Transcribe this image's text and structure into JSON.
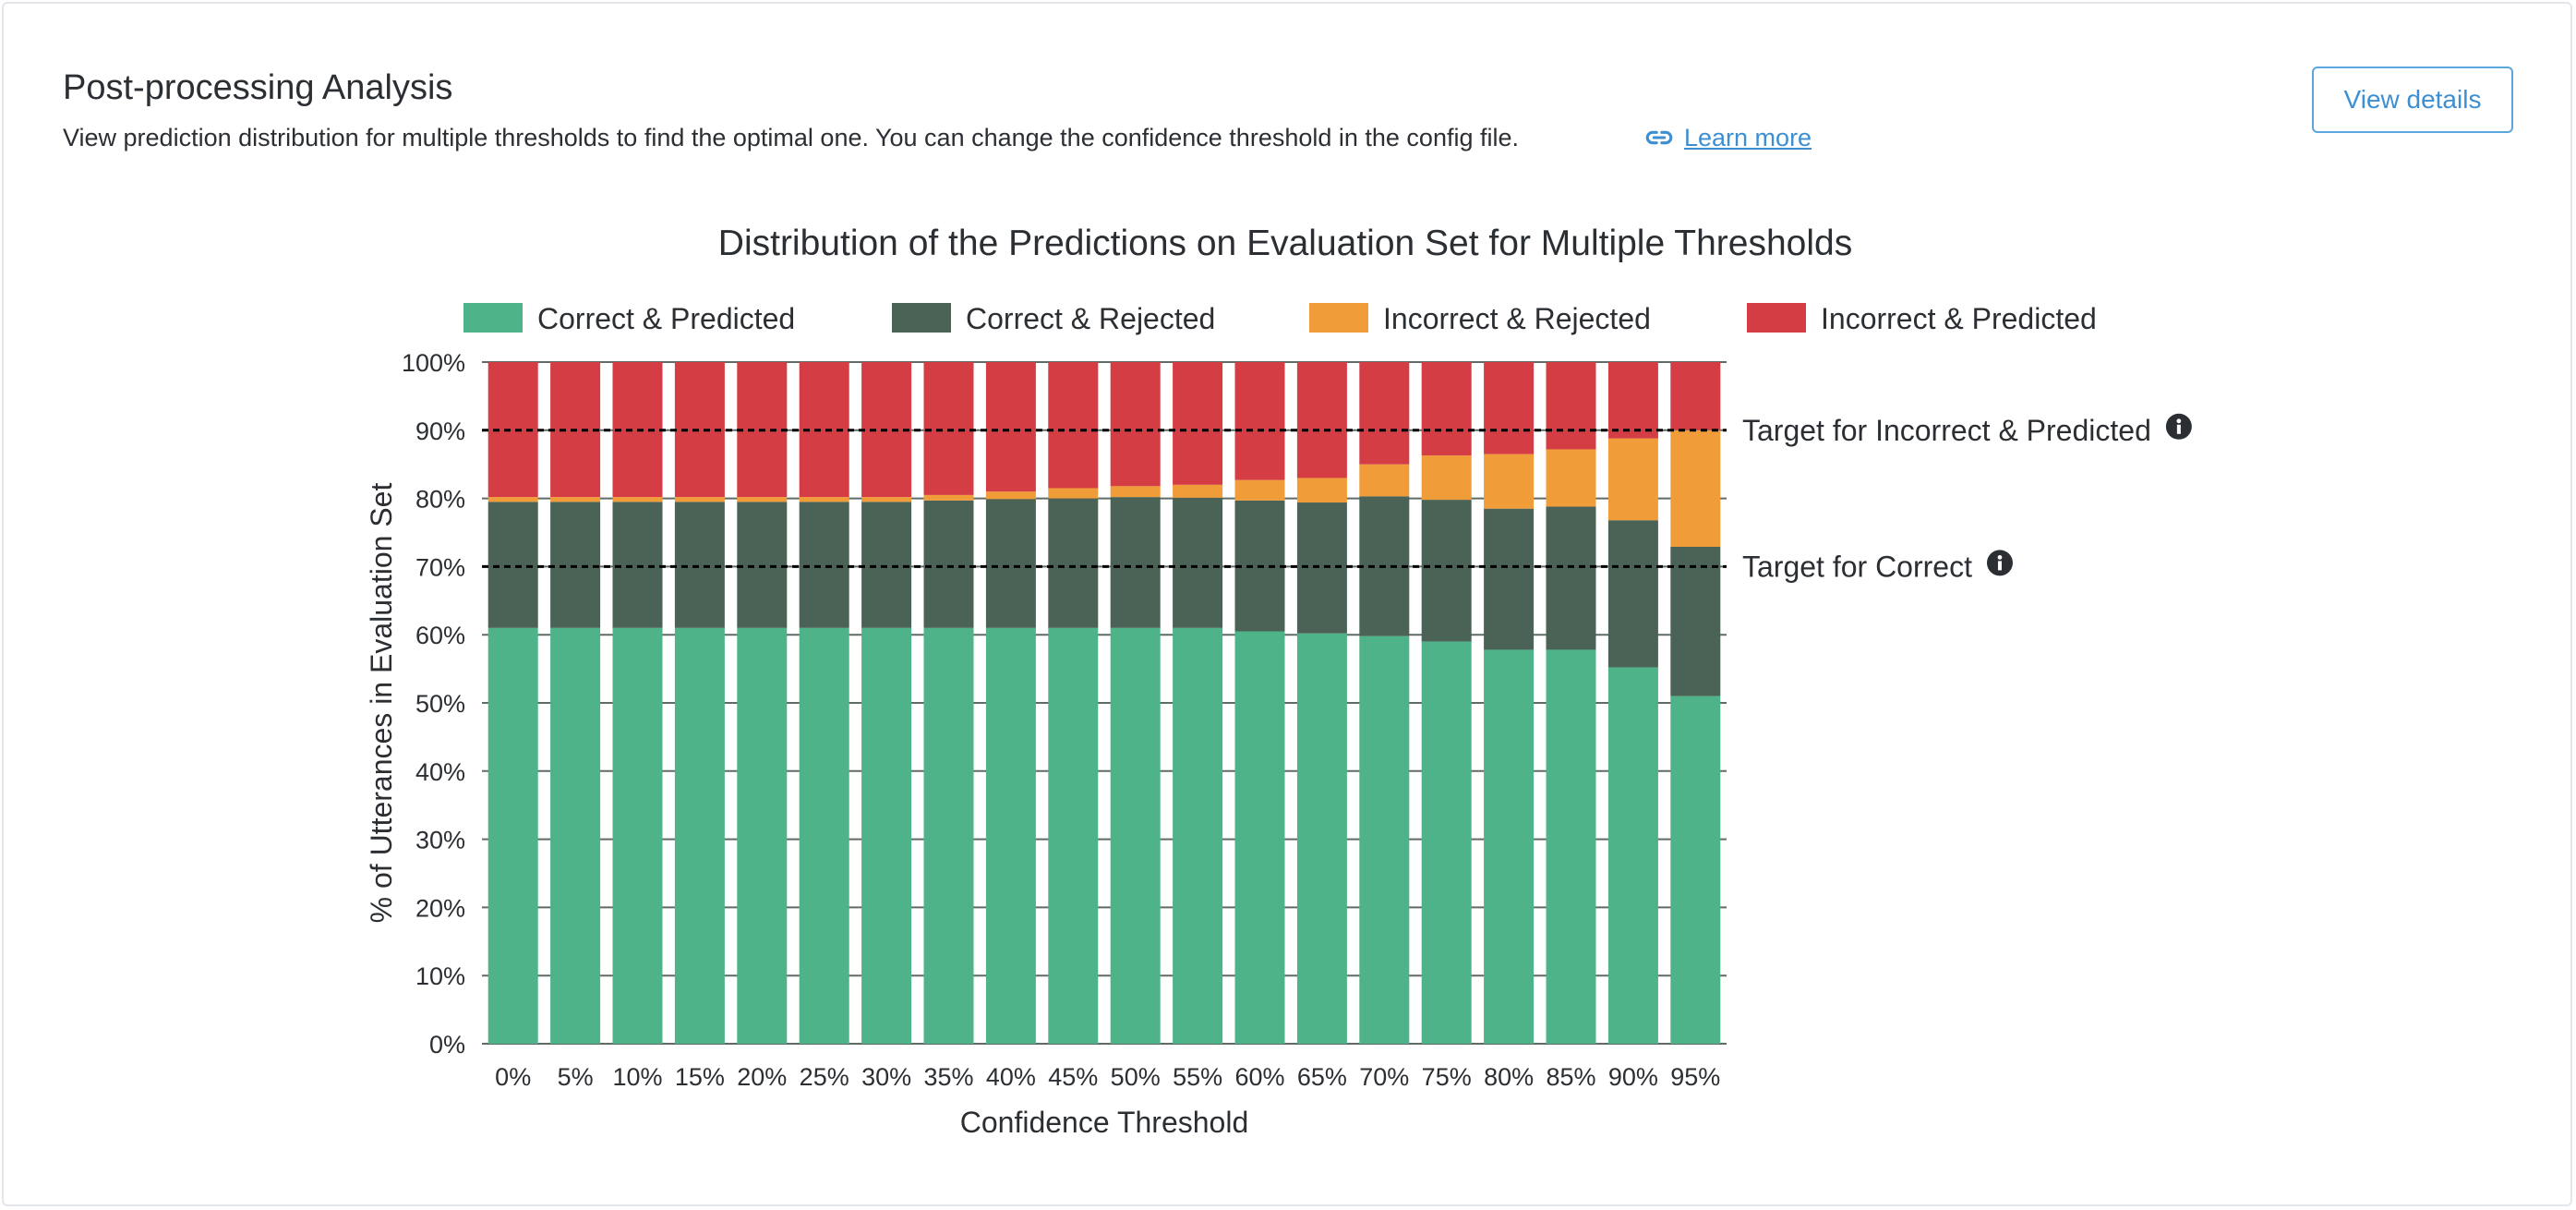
{
  "header": {
    "title": "Post-processing Analysis",
    "description": "View prediction distribution for multiple thresholds to find the optimal one. You can change the confidence threshold in the config file.",
    "learn_more_label": "Learn more",
    "view_details_label": "View details",
    "link_icon": "link-icon"
  },
  "chart_data": {
    "type": "bar",
    "stacked": true,
    "title": "Distribution of the Predictions on Evaluation Set for Multiple Thresholds",
    "xlabel": "Confidence Threshold",
    "ylabel": "% of Utterances in Evaluation Set",
    "ylim": [
      0,
      100
    ],
    "yticks": [
      "0%",
      "10%",
      "20%",
      "30%",
      "40%",
      "50%",
      "60%",
      "70%",
      "80%",
      "90%",
      "100%"
    ],
    "grid": true,
    "legend_position": "top",
    "categories": [
      "0%",
      "5%",
      "10%",
      "15%",
      "20%",
      "25%",
      "30%",
      "35%",
      "40%",
      "45%",
      "50%",
      "55%",
      "60%",
      "65%",
      "70%",
      "75%",
      "80%",
      "85%",
      "90%",
      "95%"
    ],
    "series": [
      {
        "name": "Correct & Predicted",
        "color": "#4fb38a",
        "values": [
          61,
          61,
          61,
          61,
          61,
          61,
          61,
          61,
          61,
          61,
          61,
          61,
          60.5,
          60.2,
          59.8,
          59,
          57.8,
          57.8,
          55.2,
          51
        ]
      },
      {
        "name": "Correct & Rejected",
        "color": "#4b6357",
        "values": [
          18.5,
          18.5,
          18.5,
          18.5,
          18.5,
          18.5,
          18.5,
          18.7,
          18.9,
          19,
          19.2,
          19.1,
          19.2,
          19.2,
          20.5,
          20.8,
          20.7,
          21,
          21.6,
          21.9
        ]
      },
      {
        "name": "Incorrect & Rejected",
        "color": "#f09c39",
        "values": [
          0.7,
          0.7,
          0.7,
          0.7,
          0.7,
          0.7,
          0.7,
          0.8,
          1.1,
          1.5,
          1.6,
          1.9,
          3,
          3.6,
          4.7,
          6.5,
          8,
          8.4,
          12,
          17.1
        ]
      },
      {
        "name": "Incorrect & Predicted",
        "color": "#d43d44",
        "values": [
          19.8,
          19.8,
          19.8,
          19.8,
          19.8,
          19.8,
          19.8,
          19.5,
          19,
          18.5,
          18.2,
          18,
          17.3,
          17,
          15,
          13.7,
          13.5,
          12.8,
          11.2,
          10
        ]
      }
    ],
    "targets": [
      {
        "label": "Target for Incorrect & Predicted",
        "value": 90,
        "icon": "info-icon"
      },
      {
        "label": "Target for Correct",
        "value": 70,
        "icon": "info-icon"
      }
    ]
  }
}
